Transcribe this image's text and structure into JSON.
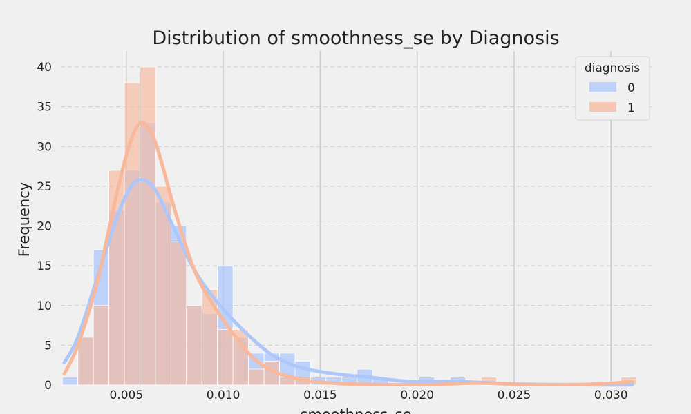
{
  "chart_data": {
    "type": "histogram",
    "title": "Distribution of smoothness_se by Diagnosis",
    "xlabel": "smoothness_se",
    "ylabel": "Frequency",
    "xlim": [
      0.00162,
      0.0322
    ],
    "ylim": [
      0,
      42
    ],
    "xticks": [
      0.005,
      0.01,
      0.015,
      0.02,
      0.025,
      0.03
    ],
    "xtick_labels": [
      "0.005",
      "0.010",
      "0.015",
      "0.020",
      "0.025",
      "0.030"
    ],
    "yticks": [
      0,
      5,
      10,
      15,
      20,
      25,
      30,
      35,
      40
    ],
    "ytick_labels": [
      "0",
      "5",
      "10",
      "15",
      "20",
      "25",
      "30",
      "35",
      "40"
    ],
    "grid": true,
    "legend": {
      "title": "diagnosis",
      "position": "top-right"
    },
    "bin_start": 0.0017,
    "bin_width": 0.0008,
    "series": [
      {
        "name": "0",
        "color": "#aec7fb",
        "counts": [
          1,
          6,
          17,
          22,
          27,
          33,
          23,
          20,
          10,
          9,
          15,
          6,
          4,
          4,
          4,
          3,
          1,
          1,
          1,
          2,
          1,
          0,
          0,
          1,
          0,
          1,
          0,
          0,
          0,
          0,
          0,
          0,
          0,
          0,
          0,
          0,
          0
        ],
        "kde": [
          [
            0.0018,
            2.8
          ],
          [
            0.0025,
            6
          ],
          [
            0.0035,
            13.5
          ],
          [
            0.0045,
            21
          ],
          [
            0.0052,
            24.8
          ],
          [
            0.0058,
            25.8
          ],
          [
            0.0065,
            24.5
          ],
          [
            0.0075,
            19.5
          ],
          [
            0.0085,
            14.5
          ],
          [
            0.0095,
            11
          ],
          [
            0.0105,
            8.2
          ],
          [
            0.0115,
            5.8
          ],
          [
            0.0125,
            3.8
          ],
          [
            0.0135,
            2.6
          ],
          [
            0.0145,
            1.9
          ],
          [
            0.0155,
            1.5
          ],
          [
            0.0165,
            1.2
          ],
          [
            0.0175,
            1.0
          ],
          [
            0.0185,
            0.7
          ],
          [
            0.0195,
            0.45
          ],
          [
            0.0205,
            0.4
          ],
          [
            0.0215,
            0.45
          ],
          [
            0.0225,
            0.4
          ],
          [
            0.0235,
            0.3
          ],
          [
            0.025,
            0.15
          ],
          [
            0.027,
            0.05
          ],
          [
            0.0311,
            0.02
          ]
        ]
      },
      {
        "name": "1",
        "color": "#f7b89c",
        "counts": [
          0,
          6,
          10,
          27,
          38,
          40,
          25,
          18,
          10,
          12,
          7,
          7,
          2,
          3,
          1,
          1,
          0,
          0,
          0,
          0,
          0,
          0,
          0,
          0,
          0,
          0,
          0,
          1,
          0,
          0,
          0,
          0,
          0,
          0,
          0,
          0,
          1
        ],
        "kde": [
          [
            0.0018,
            1.4
          ],
          [
            0.0025,
            5
          ],
          [
            0.0035,
            13
          ],
          [
            0.0045,
            24
          ],
          [
            0.0052,
            30.5
          ],
          [
            0.0058,
            33
          ],
          [
            0.0065,
            30.5
          ],
          [
            0.0075,
            22
          ],
          [
            0.0085,
            14.5
          ],
          [
            0.0095,
            10
          ],
          [
            0.0105,
            6.5
          ],
          [
            0.0115,
            3.5
          ],
          [
            0.0125,
            1.8
          ],
          [
            0.0135,
            1.0
          ],
          [
            0.0145,
            0.5
          ],
          [
            0.0155,
            0.25
          ],
          [
            0.017,
            0.1
          ],
          [
            0.019,
            0.05
          ],
          [
            0.021,
            0.08
          ],
          [
            0.023,
            0.25
          ],
          [
            0.0245,
            0.15
          ],
          [
            0.026,
            0.05
          ],
          [
            0.028,
            0.05
          ],
          [
            0.0295,
            0.15
          ],
          [
            0.0311,
            0.4
          ]
        ]
      }
    ]
  }
}
